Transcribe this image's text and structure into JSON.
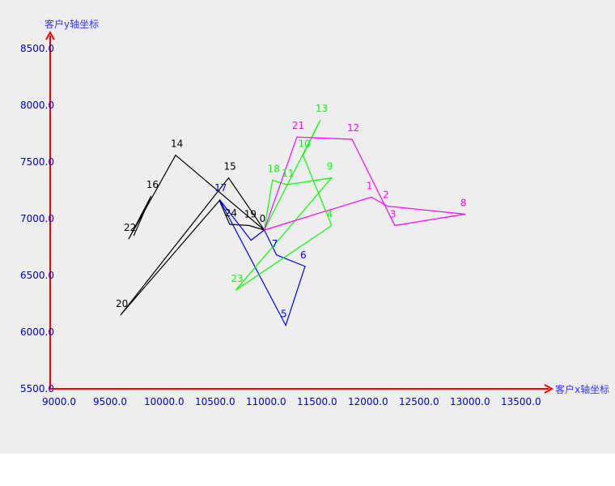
{
  "chart_data": {
    "type": "line",
    "xlabel": "客户x轴坐标",
    "ylabel": "客户y轴坐标",
    "xlim": [
      9000,
      13500
    ],
    "ylim": [
      5500,
      8500
    ],
    "xticks": [
      "9000.0",
      "9500.0",
      "10000.0",
      "10500.0",
      "11000.0",
      "11500.0",
      "12000.0",
      "12500.0",
      "13000.0",
      "13500.0"
    ],
    "yticks": [
      "5500.0",
      "6000.0",
      "6500.0",
      "7000.0",
      "7500.0",
      "8000.0",
      "8500.0"
    ],
    "axis_color": "#ff0000",
    "series": [
      {
        "color": "#000000",
        "points": [
          {
            "x": 11100,
            "y": 6900,
            "label": "0"
          },
          {
            "x": 10950,
            "y": 6940,
            "label": "19"
          },
          {
            "x": 10760,
            "y": 6950,
            "label": "24"
          },
          {
            "x": 10660,
            "y": 7160,
            "label": ""
          },
          {
            "x": 9690,
            "y": 6150,
            "label": "20"
          },
          {
            "x": 10750,
            "y": 7360,
            "label": "15"
          },
          {
            "x": 11100,
            "y": 6900,
            "label": ""
          },
          {
            "x": 10230,
            "y": 7560,
            "label": "14"
          },
          {
            "x": 9770,
            "y": 6820,
            "label": "22"
          },
          {
            "x": 9990,
            "y": 7200,
            "label": "16"
          },
          {
            "x": 9820,
            "y": 6850,
            "label": ""
          }
        ]
      },
      {
        "color": "#0000ff",
        "points": [
          {
            "x": 11100,
            "y": 6900,
            "label": ""
          },
          {
            "x": 10970,
            "y": 6810,
            "label": ""
          },
          {
            "x": 10660,
            "y": 7170,
            "label": "17"
          },
          {
            "x": 11310,
            "y": 6060,
            "label": "5"
          },
          {
            "x": 11500,
            "y": 6580,
            "label": "6"
          },
          {
            "x": 11220,
            "y": 6680,
            "label": "7"
          },
          {
            "x": 11100,
            "y": 6900,
            "label": ""
          }
        ]
      },
      {
        "color": "#00ff00",
        "points": [
          {
            "x": 11100,
            "y": 6900,
            "label": ""
          },
          {
            "x": 11180,
            "y": 7340,
            "label": "18"
          },
          {
            "x": 11320,
            "y": 7300,
            "label": "11"
          },
          {
            "x": 11760,
            "y": 7360,
            "label": "9"
          },
          {
            "x": 10820,
            "y": 6370,
            "label": "23"
          },
          {
            "x": 11760,
            "y": 6940,
            "label": "4"
          },
          {
            "x": 11480,
            "y": 7560,
            "label": "10"
          },
          {
            "x": 11650,
            "y": 7870,
            "label": "13"
          },
          {
            "x": 11100,
            "y": 6900,
            "label": ""
          }
        ]
      },
      {
        "color": "#ff00ff",
        "points": [
          {
            "x": 11100,
            "y": 6900,
            "label": ""
          },
          {
            "x": 12150,
            "y": 7190,
            "label": "1"
          },
          {
            "x": 12310,
            "y": 7110,
            "label": "2"
          },
          {
            "x": 13070,
            "y": 7040,
            "label": "8"
          },
          {
            "x": 12380,
            "y": 6940,
            "label": "3"
          },
          {
            "x": 11960,
            "y": 7700,
            "label": "12"
          },
          {
            "x": 11420,
            "y": 7720,
            "label": "21"
          },
          {
            "x": 11100,
            "y": 6900,
            "label": ""
          }
        ]
      }
    ]
  }
}
